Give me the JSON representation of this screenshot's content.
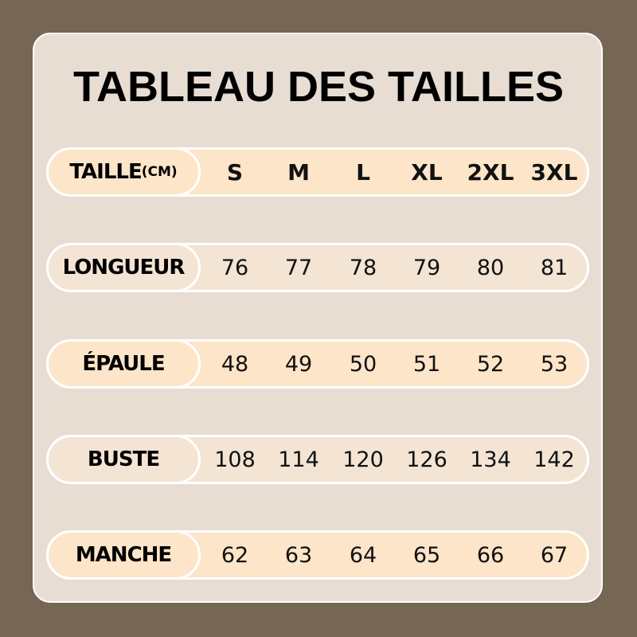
{
  "title": "TABLEAU DES TAILLES",
  "header": {
    "label": "TAILLE",
    "unit": "(CM)",
    "sizes": [
      "S",
      "M",
      "L",
      "XL",
      "2XL",
      "3XL"
    ]
  },
  "rows": [
    {
      "label": "LONGUEUR",
      "values": [
        "76",
        "77",
        "78",
        "79",
        "80",
        "81"
      ]
    },
    {
      "label": "ÉPAULE",
      "values": [
        "48",
        "49",
        "50",
        "51",
        "52",
        "53"
      ]
    },
    {
      "label": "BUSTE",
      "values": [
        "108",
        "114",
        "120",
        "126",
        "134",
        "142"
      ]
    },
    {
      "label": "MANCHE",
      "values": [
        "62",
        "63",
        "64",
        "65",
        "66",
        "67"
      ]
    }
  ],
  "colors": {
    "background": "#756655",
    "panel": "#e8ddd2",
    "row_peach": "#fde5c9",
    "row_light": "#f3e4d4"
  }
}
